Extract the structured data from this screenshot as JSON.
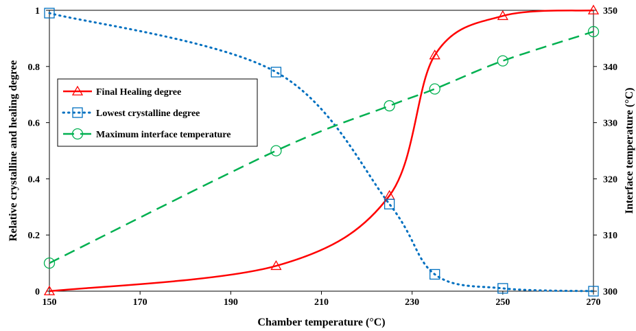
{
  "chart_data": {
    "type": "line",
    "xlabel": "Chamber temperature (°C)",
    "ylabel": "Relative crystalline and healing degree",
    "y2label": "Interface temperature (°C)",
    "xlim": [
      150,
      270
    ],
    "ylim": [
      0,
      1
    ],
    "y2lim": [
      300,
      350
    ],
    "x_ticks": [
      "150",
      "170",
      "190",
      "210",
      "230",
      "250",
      "270"
    ],
    "y_ticks": [
      "0",
      "0.2",
      "0.4",
      "0.6",
      "0.8",
      "1"
    ],
    "y2_ticks": [
      "300",
      "310",
      "320",
      "330",
      "340",
      "350"
    ],
    "grid": false,
    "legend_position": "upper-left",
    "series": [
      {
        "name": "Final Healing degree",
        "axis": "left",
        "color": "#ff0000",
        "line_style": "solid",
        "marker": "triangle",
        "x": [
          150,
          200,
          225,
          235,
          250,
          270
        ],
        "y": [
          0,
          0.09,
          0.34,
          0.84,
          0.98,
          1.0
        ]
      },
      {
        "name": "Lowest crystalline degree",
        "axis": "left",
        "color": "#0070c0",
        "line_style": "dotted",
        "marker": "square",
        "x": [
          150,
          200,
          225,
          235,
          250,
          270
        ],
        "y": [
          0.99,
          0.78,
          0.31,
          0.06,
          0.01,
          0.0
        ]
      },
      {
        "name": "Maximum interface temperature",
        "axis": "right",
        "color": "#00b050",
        "line_style": "dashed",
        "marker": "circle",
        "x": [
          150,
          200,
          225,
          235,
          250,
          270
        ],
        "y": [
          305,
          325,
          333,
          336,
          341,
          346.2
        ]
      }
    ]
  }
}
